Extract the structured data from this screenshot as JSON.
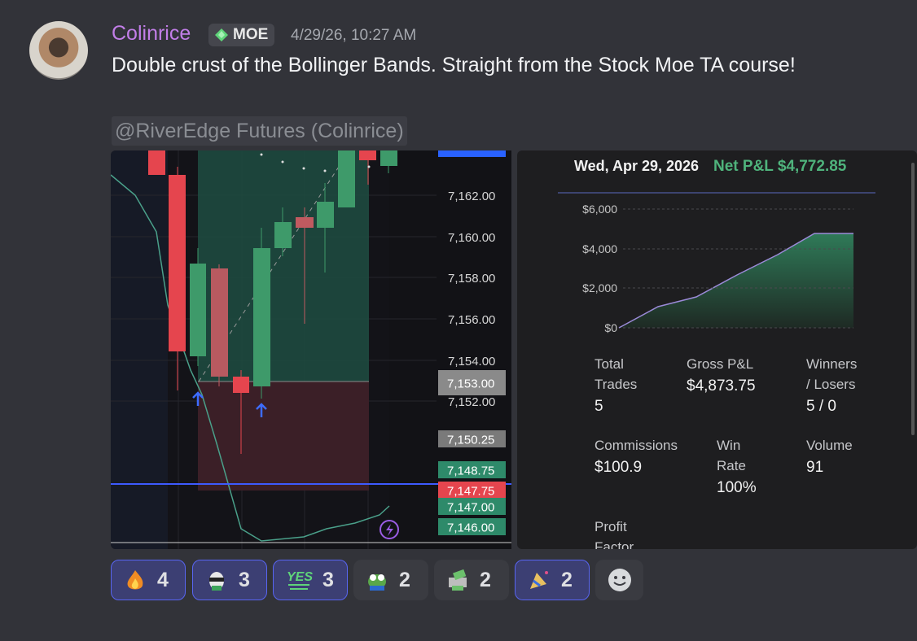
{
  "message": {
    "author": "Colinrice",
    "role_badge": "MOE",
    "timestamp": "4/29/26, 10:27 AM",
    "text": "Double crust of the Bollinger Bands. Straight from the Stock Moe TA course!",
    "mention": "@RiverEdge Futures (Colinrice)"
  },
  "price_chart": {
    "axis_labels": [
      "7,162.00",
      "7,160.00",
      "7,158.00",
      "7,156.00",
      "7,154.00",
      "7,152.00"
    ],
    "boxed_labels": [
      "7,153.00",
      "7,150.25",
      "7,148.75",
      "7,147.75",
      "7,147.00",
      "7,146.00"
    ]
  },
  "pnl_card": {
    "date": "Wed, Apr 29, 2026",
    "net_pnl": "Net P&L $4,772.85",
    "yticks": [
      "$6,000",
      "$4,000",
      "$2,000",
      "$0"
    ],
    "stats": [
      {
        "label": "Total Trades",
        "value": "5"
      },
      {
        "label": "Gross P&L",
        "value": "$4,873.75"
      },
      {
        "label": "Winners / Losers",
        "value": "5 / 0"
      },
      {
        "label": "Commissions",
        "value": "$100.9"
      },
      {
        "label": "Win Rate",
        "value": "100%"
      },
      {
        "label": "Volume",
        "value": "91"
      },
      {
        "label": "Profit Factor"
      }
    ]
  },
  "reactions": [
    {
      "count": "4"
    },
    {
      "count": "3"
    },
    {
      "count": "3"
    },
    {
      "count": "2"
    },
    {
      "count": "2"
    },
    {
      "count": "2"
    }
  ]
}
